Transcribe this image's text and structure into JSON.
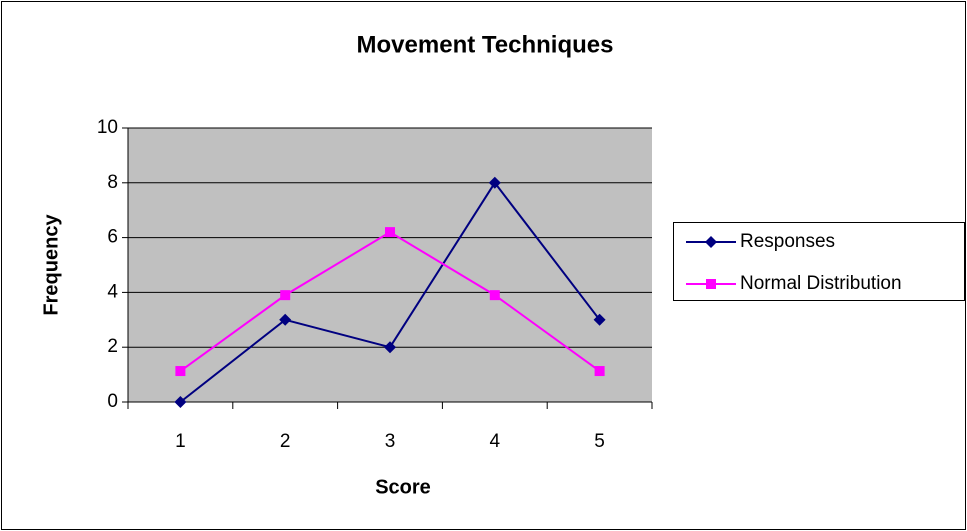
{
  "chart_data": {
    "type": "line",
    "title": "Movement Techniques",
    "x_label": "Score",
    "y_label": "Frequency",
    "categories": [
      "1",
      "2",
      "3",
      "4",
      "5"
    ],
    "series": [
      {
        "name": "Responses",
        "color": "#000080",
        "marker": "diamond",
        "values": [
          0,
          3,
          2,
          8,
          3
        ]
      },
      {
        "name": "Normal Distribution",
        "color": "#ff00ff",
        "marker": "square",
        "values": [
          1.13,
          3.9,
          6.2,
          3.9,
          1.13
        ]
      }
    ],
    "ylim": [
      0,
      10
    ],
    "yticks": [
      0,
      2,
      4,
      6,
      8,
      10
    ],
    "grid": true,
    "legend": "right"
  }
}
